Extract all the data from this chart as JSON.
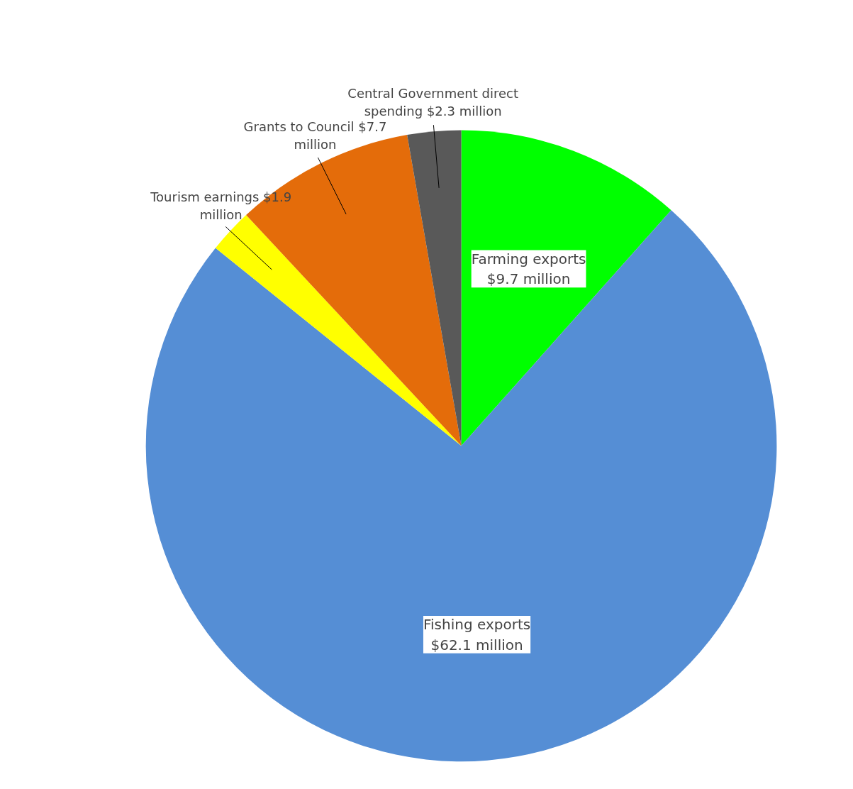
{
  "chart_data": {
    "type": "pie",
    "categories": [
      "Farming exports",
      "Fishing exports",
      "Tourism earnings",
      "Grants to Council",
      "Central Government direct spending"
    ],
    "values": [
      9.7,
      62.1,
      1.9,
      7.7,
      2.3
    ],
    "value_labels": [
      "$9.7 million",
      "$62.1 million",
      "$1.9 million",
      "$7.7 million",
      "$2.3 million"
    ],
    "colors": [
      "#00ff00",
      "#558ed5",
      "#ffff00",
      "#e46c0a",
      "#595959"
    ]
  }
}
